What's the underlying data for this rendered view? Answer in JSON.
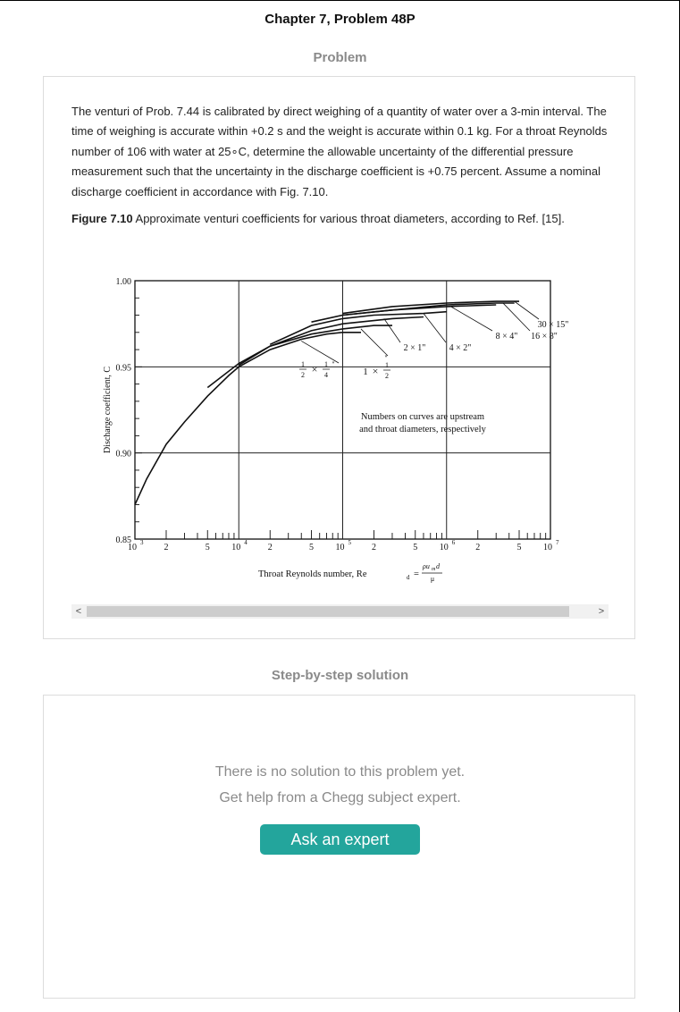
{
  "header": {
    "chapter_title": "Chapter 7, Problem 48P"
  },
  "problem_section": {
    "title": "Problem",
    "text": "The venturi of Prob. 7.44 is calibrated by direct weighing of a quantity of water over a 3-min interval. The time of weighing is accurate within +0.2 s and the weight is accurate within 0.1 kg. For a throat Reynolds number of 106 with water at 25∘C, determine the allowable uncertainty of the differential pressure measurement such that the uncertainty in the discharge coefficient is +0.75 percent. Assume a nominal discharge coefficient in accordance with Fig. 7.10.",
    "figure_label": "Figure 7.10",
    "figure_caption": " Approximate venturi coefficients for various throat diameters, according to Ref. [15]."
  },
  "chart_data": {
    "type": "line",
    "xscale": "log",
    "xlim": [
      1000,
      10000000
    ],
    "ylim": [
      0.85,
      1.0
    ],
    "xlabel": "Throat Reynolds number, Re",
    "xlabel_subscript": "d",
    "xlabel_eq": "=",
    "xlabel_frac_num": "ρu",
    "xlabel_frac_num_sub": "m",
    "xlabel_frac_num_end": "d",
    "xlabel_frac_den": "μ",
    "ylabel": "Discharge coefficient, C",
    "yticks": [
      "0.85",
      "0.90",
      "0.95",
      "1.00"
    ],
    "xtick_labels": [
      {
        "value": 1000,
        "base": "10",
        "exp": "3"
      },
      {
        "value": 2000,
        "label": "2"
      },
      {
        "value": 5000,
        "label": "5"
      },
      {
        "value": 10000,
        "base": "10",
        "exp": "4"
      },
      {
        "value": 20000,
        "label": "2"
      },
      {
        "value": 50000,
        "label": "5"
      },
      {
        "value": 100000,
        "base": "10",
        "exp": "5"
      },
      {
        "value": 200000,
        "label": "2"
      },
      {
        "value": 500000,
        "label": "5"
      },
      {
        "value": 1000000,
        "base": "10",
        "exp": "6"
      },
      {
        "value": 2000000,
        "label": "2"
      },
      {
        "value": 5000000,
        "label": "5"
      },
      {
        "value": 10000000,
        "base": "10",
        "exp": "7"
      }
    ],
    "note_lines": [
      "Numbers on curves are upstream",
      "and throat diameters, respectively"
    ],
    "series": [
      {
        "name": "1/2 × 1/4",
        "x": [
          1000,
          1300,
          2000,
          3000,
          5000,
          8000,
          10000,
          20000,
          40000,
          70000,
          100000,
          150000
        ],
        "y": [
          0.87,
          0.885,
          0.905,
          0.918,
          0.933,
          0.945,
          0.95,
          0.96,
          0.966,
          0.969,
          0.97,
          0.97
        ]
      },
      {
        "name": "1 × 1/2",
        "x": [
          5000,
          10000,
          20000,
          50000,
          100000,
          200000,
          300000
        ],
        "y": [
          0.938,
          0.952,
          0.962,
          0.969,
          0.972,
          0.974,
          0.974
        ]
      },
      {
        "name": "2 × 1\"",
        "x": [
          10000,
          20000,
          50000,
          100000,
          300000,
          600000
        ],
        "y": [
          0.951,
          0.962,
          0.971,
          0.975,
          0.978,
          0.979
        ]
      },
      {
        "name": "4 × 2\"",
        "x": [
          20000,
          50000,
          100000,
          200000,
          600000,
          1000000
        ],
        "y": [
          0.963,
          0.974,
          0.978,
          0.98,
          0.981,
          0.982
        ]
      },
      {
        "name": "8 × 4\"",
        "x": [
          50000,
          100000,
          300000,
          1000000,
          3000000
        ],
        "y": [
          0.976,
          0.98,
          0.983,
          0.985,
          0.986
        ]
      },
      {
        "name": "16 × 8\"",
        "x": [
          100000,
          300000,
          1000000,
          3000000,
          4500000
        ],
        "y": [
          0.98,
          0.983,
          0.986,
          0.987,
          0.987
        ]
      },
      {
        "name": "30 × 15\"",
        "x": [
          100000,
          300000,
          1000000,
          3000000,
          5000000
        ],
        "y": [
          0.981,
          0.985,
          0.987,
          0.988,
          0.988
        ]
      }
    ],
    "curve_labels": [
      {
        "whole": "",
        "num1": "1",
        "den1": "2",
        "times": "×",
        "num2": "1",
        "den2": "4",
        "unit": "\""
      },
      {
        "whole": "1",
        "times": "×",
        "num2": "1",
        "den2": "2",
        "unit": "\""
      },
      {
        "text": "2 × 1\""
      },
      {
        "text": "4 × 2\""
      },
      {
        "text": "8 × 4\""
      },
      {
        "text": "16 × 8\""
      },
      {
        "text": "30 × 15\""
      }
    ]
  },
  "solution_section": {
    "title": "Step-by-step solution",
    "message_line1": "There is no solution to this problem yet.",
    "message_line2": "Get help from a Chegg subject expert.",
    "button_label": "Ask an expert"
  },
  "scrollbar": {
    "left_arrow": "<",
    "right_arrow": ">"
  }
}
